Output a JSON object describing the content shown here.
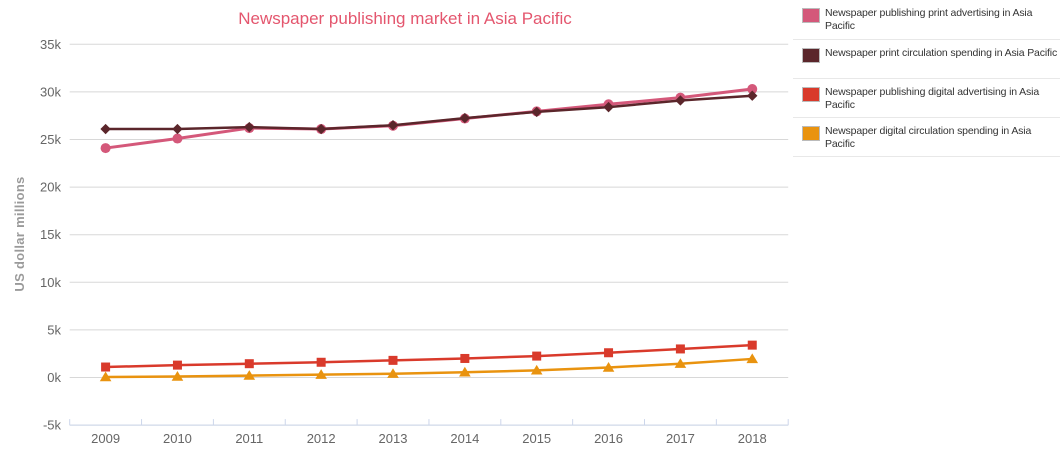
{
  "page": {
    "background": "#ffffff"
  },
  "chart_data": {
    "type": "line",
    "title": "Newspaper publishing market in Asia Pacific",
    "title_color": "#e4566e",
    "ylabel": "US dollar millions",
    "xlabel": "",
    "categories": [
      "2009",
      "2010",
      "2011",
      "2012",
      "2013",
      "2014",
      "2015",
      "2016",
      "2017",
      "2018"
    ],
    "ylim": [
      -5000,
      35000
    ],
    "ytick_interval": 5000,
    "ytick_labels_top_to_bottom": [
      "35k",
      "30k",
      "25k",
      "20k",
      "15k",
      "10k",
      "5k",
      "0k",
      "-5k"
    ],
    "grid": true,
    "legend_position": "right",
    "axis_label_color": "#666666",
    "gridline_color": "#d8d8d8",
    "xaxis_line_color": "#ccd6eb",
    "series": [
      {
        "name": "Newspaper publishing print advertising in Asia Pacific",
        "color": "#d4587a",
        "marker": "circle",
        "values": [
          24100,
          25100,
          26200,
          26100,
          26450,
          27200,
          27950,
          28700,
          29400,
          30300
        ]
      },
      {
        "name": "Newspaper print circulation spending in Asia Pacific",
        "color": "#5b262b",
        "marker": "diamond",
        "values": [
          26100,
          26100,
          26300,
          26100,
          26500,
          27250,
          27900,
          28400,
          29100,
          29600
        ]
      },
      {
        "name": "Newspaper publishing digital advertising in Asia Pacific",
        "color": "#d93a2b",
        "marker": "square",
        "values": [
          1100,
          1300,
          1450,
          1600,
          1800,
          2000,
          2250,
          2600,
          3000,
          3400
        ]
      },
      {
        "name": "Newspaper digital circulation spending in Asia Pacific",
        "color": "#e9930f",
        "marker": "triangle",
        "values": [
          50,
          100,
          200,
          300,
          400,
          550,
          750,
          1050,
          1450,
          1950
        ]
      }
    ]
  },
  "legend": {
    "text_color": "#333333",
    "separator_color": "#e8e8e8",
    "swatch_border_color": "#bbbbbb"
  }
}
